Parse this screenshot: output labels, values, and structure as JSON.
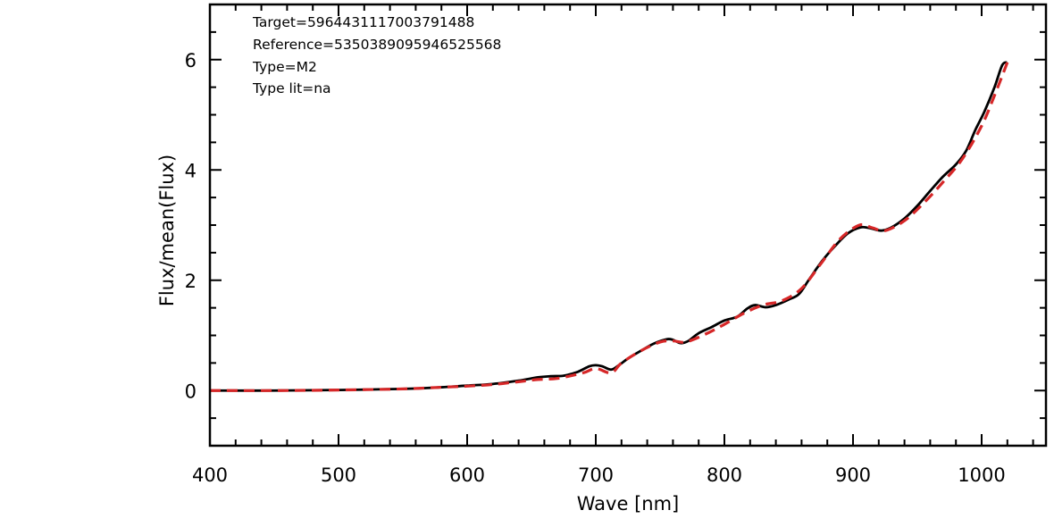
{
  "chart_data": {
    "type": "line",
    "xlabel": "Wave [nm]",
    "ylabel": "Flux/mean(Flux)",
    "xlim": [
      400,
      1050
    ],
    "ylim": [
      -1,
      7
    ],
    "x_ticks": [
      400,
      500,
      600,
      700,
      800,
      900,
      1000
    ],
    "y_ticks": [
      0,
      2,
      4,
      6
    ],
    "x_minor_step": 20,
    "y_minor_step": 0.5,
    "grid": false,
    "annotations": [
      "Target=5964431117003791488",
      "Reference=5350389095946525568",
      "Type=M2",
      "Type lit=na"
    ],
    "series": [
      {
        "color": "#000000",
        "style": "solid",
        "x": [
          400,
          450,
          500,
          550,
          580,
          600,
          620,
          640,
          655,
          665,
          675,
          685,
          695,
          700,
          705,
          712,
          718,
          725,
          735,
          745,
          755,
          760,
          766,
          772,
          780,
          790,
          800,
          810,
          818,
          824,
          832,
          840,
          850,
          858,
          866,
          876,
          886,
          896,
          906,
          914,
          922,
          930,
          940,
          950,
          960,
          970,
          980,
          988,
          995,
          1002,
          1010,
          1016,
          1020
        ],
        "y": [
          0.0,
          0.0,
          0.01,
          0.03,
          0.06,
          0.09,
          0.12,
          0.18,
          0.24,
          0.26,
          0.27,
          0.33,
          0.44,
          0.46,
          0.44,
          0.38,
          0.46,
          0.58,
          0.72,
          0.85,
          0.93,
          0.92,
          0.86,
          0.9,
          1.04,
          1.15,
          1.27,
          1.34,
          1.49,
          1.55,
          1.51,
          1.55,
          1.65,
          1.75,
          2.02,
          2.35,
          2.62,
          2.85,
          2.96,
          2.94,
          2.9,
          2.96,
          3.12,
          3.35,
          3.62,
          3.88,
          4.1,
          4.35,
          4.72,
          5.05,
          5.5,
          5.9,
          5.95
        ]
      },
      {
        "color": "#d62728",
        "style": "dashed",
        "x": [
          400,
          450,
          500,
          550,
          580,
          600,
          620,
          640,
          655,
          670,
          690,
          700,
          712,
          720,
          735,
          750,
          760,
          770,
          785,
          800,
          815,
          830,
          845,
          860,
          875,
          890,
          905,
          915,
          925,
          940,
          955,
          970,
          985,
          1000,
          1010,
          1020
        ],
        "y": [
          0.0,
          0.0,
          0.01,
          0.03,
          0.06,
          0.08,
          0.11,
          0.16,
          0.2,
          0.22,
          0.32,
          0.4,
          0.32,
          0.5,
          0.72,
          0.88,
          0.9,
          0.88,
          1.02,
          1.2,
          1.4,
          1.55,
          1.63,
          1.85,
          2.3,
          2.75,
          3.0,
          2.95,
          2.9,
          3.08,
          3.4,
          3.78,
          4.2,
          4.8,
          5.35,
          5.95
        ]
      }
    ]
  }
}
